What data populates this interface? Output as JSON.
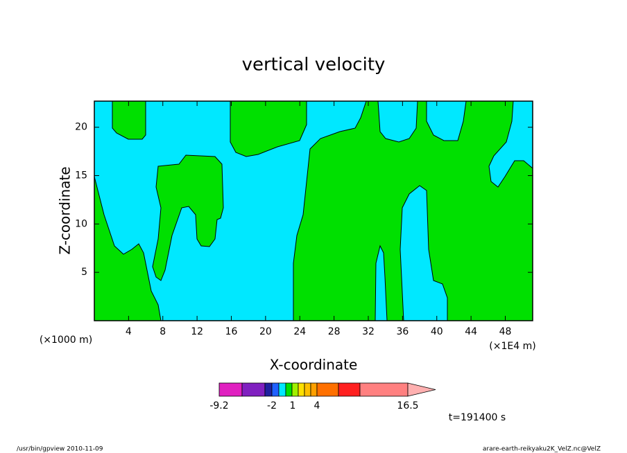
{
  "chart_data": {
    "type": "contour",
    "title": "vertical velocity",
    "x_label": "X-coordinate",
    "y_label": "Z-coordinate",
    "x_unit_left": "(×1000 m)",
    "x_unit_right": "(×1E4 m)",
    "xlim": [
      0,
      51.2
    ],
    "ylim": [
      0,
      22.7
    ],
    "xticks": [
      4,
      8,
      12,
      16,
      20,
      24,
      28,
      32,
      36,
      40,
      44,
      48
    ],
    "yticks": [
      5,
      10,
      15,
      20
    ],
    "colorbar": {
      "colors": [
        "#e020c0",
        "#8020c0",
        "#2020a0",
        "#2060ff",
        "#00e8ff",
        "#00e000",
        "#a0f000",
        "#ffe000",
        "#ffc000",
        "#ffa000",
        "#ff7000",
        "#ff2020",
        "#ff8080",
        "#ffb0b0"
      ],
      "labels": [
        -9.2,
        -2,
        1,
        4,
        16.5
      ]
    },
    "time_label": "t=191400 s",
    "footer_left": "/usr/bin/gpview  2010-11-09",
    "footer_right": "arare-earth-reikyaku2K_VelZ.nc@VelZ"
  }
}
